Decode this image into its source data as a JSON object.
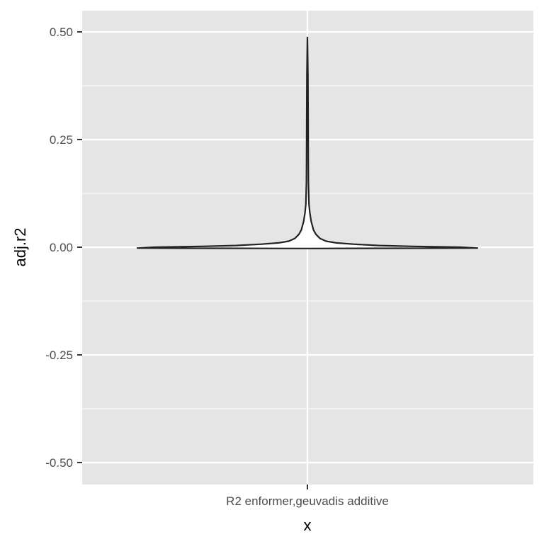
{
  "chart_data": {
    "type": "violin",
    "x": [
      "R2 enformer,geuvadis additive"
    ],
    "xlabel": "x",
    "ylabel": "adj.r2",
    "ylim": [
      -0.55,
      0.55
    ],
    "yticks": [
      -0.5,
      -0.25,
      0.0,
      0.25,
      0.5
    ],
    "ytick_labels": [
      "-0.50",
      "-0.25",
      "0.00",
      "0.25",
      "0.50"
    ],
    "grid": true,
    "series": [
      {
        "category": "R2 enformer,geuvadis additive",
        "min": -0.003,
        "max": 0.487,
        "density_profile": [
          {
            "y": -0.003,
            "half_width": 0.0
          },
          {
            "y": -0.002,
            "half_width": 1.0
          },
          {
            "y": 0.0,
            "half_width": 0.9
          },
          {
            "y": 0.002,
            "half_width": 0.62
          },
          {
            "y": 0.004,
            "half_width": 0.42
          },
          {
            "y": 0.007,
            "half_width": 0.27
          },
          {
            "y": 0.01,
            "half_width": 0.17
          },
          {
            "y": 0.014,
            "half_width": 0.11
          },
          {
            "y": 0.02,
            "half_width": 0.075
          },
          {
            "y": 0.03,
            "half_width": 0.05
          },
          {
            "y": 0.04,
            "half_width": 0.036
          },
          {
            "y": 0.06,
            "half_width": 0.022
          },
          {
            "y": 0.08,
            "half_width": 0.014
          },
          {
            "y": 0.1,
            "half_width": 0.009
          },
          {
            "y": 0.15,
            "half_width": 0.006
          },
          {
            "y": 0.2,
            "half_width": 0.005
          },
          {
            "y": 0.3,
            "half_width": 0.004
          },
          {
            "y": 0.4,
            "half_width": 0.003
          },
          {
            "y": 0.487,
            "half_width": 0.0
          }
        ]
      }
    ],
    "colors": {
      "panel_background": "#e5e5e5",
      "grid_line": "#ffffff",
      "violin_outline": "#222222",
      "tick_label": "#4d4d4d",
      "axis_title": "#000000"
    }
  }
}
